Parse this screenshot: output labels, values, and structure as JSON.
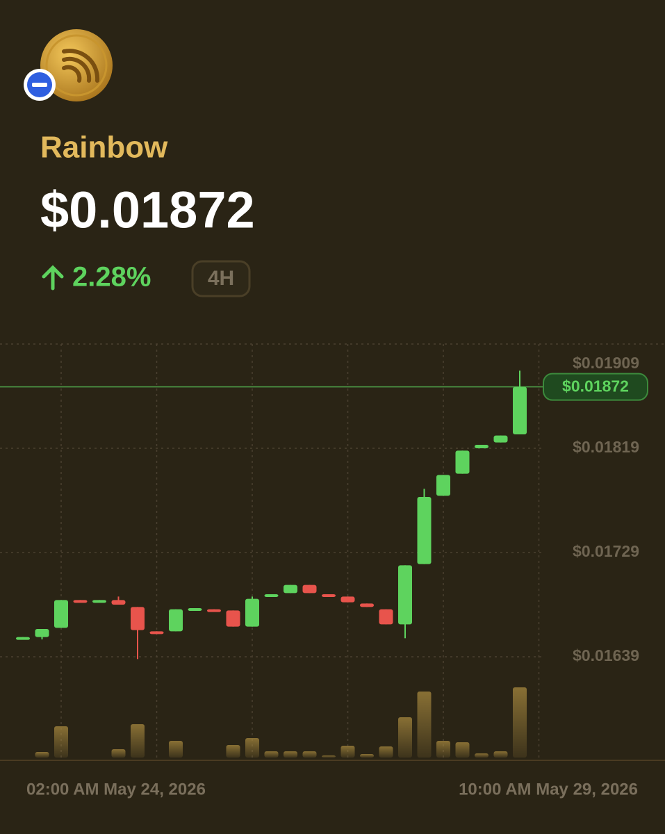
{
  "token": {
    "name": "Rainbow",
    "price": "$0.01872",
    "change": "2.28%",
    "period": "4H"
  },
  "chart_data": {
    "type": "candlestick",
    "x_labels": [
      "02:00 AM May 24, 2026",
      "10:00 AM May 29, 2026"
    ],
    "up_color": "#5ed35e",
    "down_color": "#e8544c",
    "volume_color": "#a8893f",
    "ylim": [
      0.01639,
      0.01909
    ],
    "yticks": [
      {
        "value": 0.01909,
        "label": "$0.01909"
      },
      {
        "value": 0.01819,
        "label": "$0.01819"
      },
      {
        "value": 0.01729,
        "label": "$0.01729"
      },
      {
        "value": 0.01639,
        "label": "$0.01639"
      }
    ],
    "last": {
      "value": 0.01872,
      "label": "$0.01872"
    },
    "open": [
      0.01655,
      0.01656,
      0.01664,
      0.01688,
      0.01687,
      0.01688,
      0.01682,
      0.01661,
      0.01661,
      0.0168,
      0.0168,
      0.01679,
      0.01665,
      0.01691,
      0.01694,
      0.01701,
      0.01693,
      0.01691,
      0.01685,
      0.0168,
      0.01667,
      0.01719,
      0.01778,
      0.01797,
      0.01819,
      0.01824,
      0.01831
    ],
    "high": [
      0.01656,
      0.01663,
      0.01688,
      0.01688,
      0.01688,
      0.01691,
      0.01682,
      0.01661,
      0.0168,
      0.01681,
      0.0168,
      0.01679,
      0.01691,
      0.01693,
      0.01701,
      0.01701,
      0.01693,
      0.01691,
      0.01685,
      0.0168,
      0.01718,
      0.01784,
      0.01796,
      0.01817,
      0.01822,
      0.0183,
      0.01886
    ],
    "low": [
      0.01655,
      0.01654,
      0.01664,
      0.01687,
      0.01687,
      0.01684,
      0.01637,
      0.0166,
      0.01661,
      0.0168,
      0.01679,
      0.01665,
      0.01665,
      0.01691,
      0.01694,
      0.01694,
      0.01691,
      0.01686,
      0.01682,
      0.01667,
      0.01655,
      0.01719,
      0.01778,
      0.01797,
      0.01819,
      0.01824,
      0.01831
    ],
    "close": [
      0.01656,
      0.01663,
      0.01688,
      0.01687,
      0.01688,
      0.01684,
      0.01662,
      0.0166,
      0.0168,
      0.01681,
      0.01679,
      0.01665,
      0.01689,
      0.01693,
      0.01701,
      0.01694,
      0.01691,
      0.01686,
      0.01682,
      0.01667,
      0.01718,
      0.01777,
      0.01796,
      0.01817,
      0.01822,
      0.0183,
      0.01872
    ],
    "volume": [
      0,
      8,
      45,
      0,
      0,
      12,
      48,
      0,
      24,
      0,
      0,
      18,
      28,
      9,
      9,
      9,
      3,
      17,
      5,
      16,
      58,
      95,
      24,
      22,
      6,
      9,
      101
    ]
  }
}
